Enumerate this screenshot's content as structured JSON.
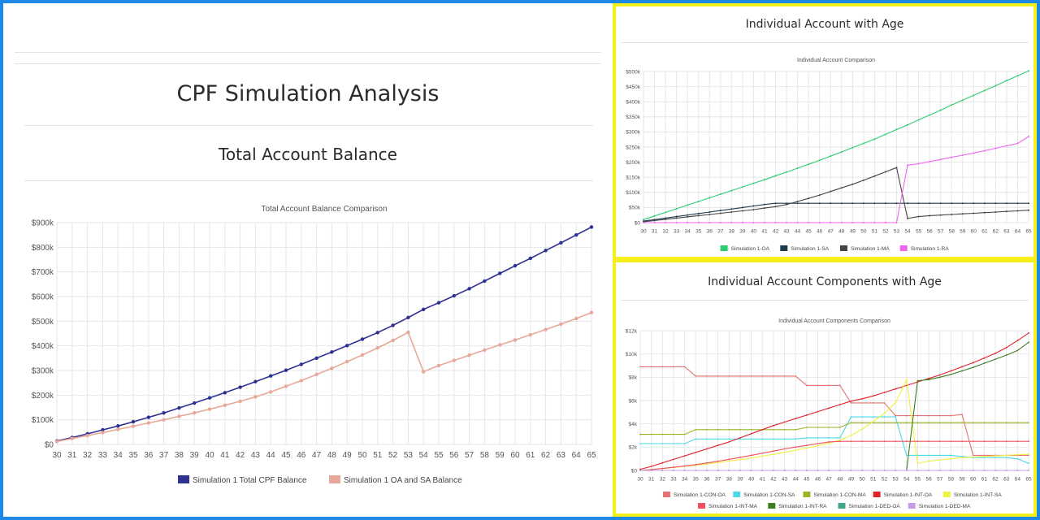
{
  "left": {
    "page_title": "CPF Simulation Analysis",
    "section_title": "Total Account Balance"
  },
  "right_top": {
    "section_title": "Individual Account with Age"
  },
  "right_bottom": {
    "section_title": "Individual Account Components with Age"
  },
  "chart_data": [
    {
      "id": "total",
      "type": "line",
      "title": "Total Account Balance Comparison",
      "xlabel": "",
      "ylabel": "",
      "x": [
        30,
        31,
        32,
        33,
        34,
        35,
        36,
        37,
        38,
        39,
        40,
        41,
        42,
        43,
        44,
        45,
        46,
        47,
        48,
        49,
        50,
        51,
        52,
        53,
        54,
        55,
        56,
        57,
        58,
        59,
        60,
        61,
        62,
        63,
        64,
        65
      ],
      "ylim": [
        0,
        900000
      ],
      "y_ticks": [
        "$0",
        "$100k",
        "$200k",
        "$300k",
        "$400k",
        "$500k",
        "$600k",
        "$700k",
        "$800k",
        "$900k"
      ],
      "grid": true,
      "legend_position": "bottom",
      "series": [
        {
          "name": "Simulation 1 Total CPF Balance",
          "color": "#2e3192",
          "values": [
            14000,
            28000,
            43000,
            59000,
            75000,
            92000,
            110000,
            128000,
            148000,
            168000,
            189000,
            210000,
            232000,
            255000,
            278000,
            301000,
            325000,
            350000,
            375000,
            401000,
            427000,
            454000,
            483000,
            515000,
            548000,
            575000,
            603000,
            632000,
            663000,
            694000,
            725000,
            755000,
            787000,
            818000,
            850000,
            882000
          ]
        },
        {
          "name": "Simulation 1 OA and SA Balance",
          "color": "#e8a898",
          "values": [
            12000,
            24000,
            36000,
            48000,
            61000,
            74000,
            87000,
            100000,
            114000,
            128000,
            143000,
            159000,
            175000,
            193000,
            213000,
            236000,
            259000,
            284000,
            309000,
            336000,
            363000,
            392000,
            422000,
            455000,
            295000,
            320000,
            341000,
            362000,
            383000,
            404000,
            424000,
            445000,
            466000,
            488000,
            511000,
            535000
          ]
        }
      ]
    },
    {
      "id": "individual",
      "type": "line",
      "title": "Individual Account Comparison",
      "x": [
        30,
        31,
        32,
        33,
        34,
        35,
        36,
        37,
        38,
        39,
        40,
        41,
        42,
        43,
        44,
        45,
        46,
        47,
        48,
        49,
        50,
        51,
        52,
        53,
        54,
        55,
        56,
        57,
        58,
        59,
        60,
        61,
        62,
        63,
        64,
        65
      ],
      "ylim": [
        0,
        500000
      ],
      "y_ticks": [
        "$0",
        "$50k",
        "$100k",
        "$150k",
        "$200k",
        "$250k",
        "$300k",
        "$350k",
        "$400k",
        "$450k",
        "$500k"
      ],
      "grid": true,
      "legend_position": "bottom",
      "series": [
        {
          "name": "Simulation 1-OA",
          "color": "#2ecc71",
          "values": [
            10000,
            22000,
            34000,
            46000,
            58000,
            70000,
            82000,
            94000,
            106000,
            118000,
            130000,
            142000,
            155000,
            167000,
            180000,
            193000,
            206000,
            220000,
            234000,
            248000,
            262000,
            276000,
            292000,
            308000,
            323000,
            340000,
            356000,
            372000,
            389000,
            405000,
            421000,
            437000,
            453000,
            470000,
            486000,
            502000
          ]
        },
        {
          "name": "Simulation 1-SA",
          "color": "#1f3a4d",
          "values": [
            5000,
            10000,
            15000,
            20000,
            25000,
            30000,
            35000,
            40000,
            45000,
            50000,
            55000,
            60000,
            64000,
            64000,
            64000,
            64000,
            64000,
            64000,
            64000,
            64000,
            64000,
            64000,
            64000,
            64000,
            64000,
            64000,
            64000,
            64000,
            64000,
            64000,
            64000,
            64000,
            64000,
            64000,
            64000,
            64000
          ]
        },
        {
          "name": "Simulation 1-MA",
          "color": "#444444",
          "values": [
            3000,
            7000,
            11000,
            15000,
            19000,
            23000,
            27000,
            31000,
            35000,
            39000,
            43000,
            48000,
            53000,
            60000,
            70000,
            80000,
            91000,
            103000,
            115000,
            127000,
            140000,
            154000,
            168000,
            182000,
            14000,
            20000,
            23000,
            25000,
            27000,
            29000,
            31000,
            33000,
            35000,
            37000,
            39000,
            41000
          ]
        },
        {
          "name": "Simulation 1-RA",
          "color": "#ee66ee",
          "values": [
            0,
            0,
            0,
            0,
            0,
            0,
            0,
            0,
            0,
            0,
            0,
            0,
            0,
            0,
            0,
            0,
            0,
            0,
            0,
            0,
            0,
            0,
            0,
            0,
            190000,
            195000,
            202000,
            209000,
            216000,
            223000,
            230000,
            238000,
            246000,
            254000,
            262000,
            285000
          ]
        }
      ]
    },
    {
      "id": "components",
      "type": "line",
      "title": "Individual Account Components Comparison",
      "x": [
        30,
        31,
        32,
        33,
        34,
        35,
        36,
        37,
        38,
        39,
        40,
        41,
        42,
        43,
        44,
        45,
        46,
        47,
        48,
        49,
        50,
        51,
        52,
        53,
        54,
        55,
        56,
        57,
        58,
        59,
        60,
        61,
        62,
        63,
        64,
        65
      ],
      "ylim": [
        0,
        12000
      ],
      "y_ticks": [
        "$0",
        "$2k",
        "$4k",
        "$6k",
        "$8k",
        "$10k",
        "$12k"
      ],
      "grid": true,
      "legend_position": "bottom",
      "series": [
        {
          "name": "Simulation 1-CON-OA",
          "color": "#e57373",
          "values": [
            8900,
            8900,
            8900,
            8900,
            8900,
            8100,
            8100,
            8100,
            8100,
            8100,
            8100,
            8100,
            8100,
            8100,
            8100,
            7300,
            7300,
            7300,
            7300,
            5800,
            5800,
            5800,
            5800,
            4700,
            4700,
            4700,
            4700,
            4700,
            4700,
            4800,
            1300,
            1300,
            1300,
            1300,
            1300,
            1300
          ]
        },
        {
          "name": "Simulation 1-CON-SA",
          "color": "#4dd9e8",
          "values": [
            2300,
            2300,
            2300,
            2300,
            2300,
            2700,
            2700,
            2700,
            2700,
            2700,
            2700,
            2700,
            2700,
            2700,
            2700,
            2800,
            2800,
            2800,
            2800,
            4600,
            4600,
            4600,
            4600,
            4600,
            1300,
            1300,
            1300,
            1300,
            1300,
            1200,
            1100,
            1100,
            1100,
            1100,
            1000,
            600
          ]
        },
        {
          "name": "Simulation 1-CON-MA",
          "color": "#9ab523",
          "values": [
            3100,
            3100,
            3100,
            3100,
            3100,
            3500,
            3500,
            3500,
            3500,
            3500,
            3500,
            3500,
            3500,
            3500,
            3500,
            3700,
            3700,
            3700,
            3700,
            4100,
            4100,
            4100,
            4100,
            4100,
            4100,
            4100,
            4100,
            4100,
            4100,
            4100,
            4100,
            4100,
            4100,
            4100,
            4100,
            4100
          ]
        },
        {
          "name": "Simulation 1-INT-OA",
          "color": "#e0202a",
          "values": [
            100,
            350,
            650,
            950,
            1250,
            1550,
            1850,
            2150,
            2450,
            2800,
            3150,
            3500,
            3850,
            4150,
            4450,
            4750,
            5050,
            5350,
            5650,
            5950,
            6150,
            6400,
            6700,
            7000,
            7300,
            7600,
            7900,
            8200,
            8550,
            8900,
            9250,
            9650,
            10050,
            10550,
            11150,
            11800
          ]
        },
        {
          "name": "Simulation 1-INT-SA",
          "color": "#f0f040",
          "values": [
            0,
            80,
            160,
            250,
            350,
            450,
            560,
            680,
            800,
            930,
            1070,
            1220,
            1380,
            1550,
            1730,
            1920,
            2120,
            2340,
            2600,
            3000,
            3550,
            4200,
            4900,
            5800,
            7800,
            600,
            800,
            900,
            1000,
            1100,
            1150,
            1200,
            1250,
            1300,
            1350,
            1400
          ]
        },
        {
          "name": "Simulation 1-INT-MA",
          "color": "#f05060",
          "values": [
            0,
            80,
            170,
            270,
            380,
            500,
            640,
            790,
            950,
            1120,
            1300,
            1480,
            1660,
            1850,
            2000,
            2150,
            2300,
            2450,
            2500,
            2500,
            2500,
            2500,
            2500,
            2500,
            2500,
            2500,
            2500,
            2500,
            2500,
            2500,
            2500,
            2500,
            2500,
            2500,
            2500,
            2500
          ]
        },
        {
          "name": "Simulation 1-INT-RA",
          "color": "#3c7d22",
          "values": [
            0,
            0,
            0,
            0,
            0,
            0,
            0,
            0,
            0,
            0,
            0,
            0,
            0,
            0,
            0,
            0,
            0,
            0,
            0,
            0,
            0,
            0,
            0,
            0,
            0,
            7700,
            7800,
            8000,
            8250,
            8550,
            8850,
            9200,
            9550,
            9900,
            10300,
            11000
          ]
        },
        {
          "name": "Simulation 1-DED-OA",
          "color": "#41a68c",
          "values": [
            0,
            0,
            0,
            0,
            0,
            0,
            0,
            0,
            0,
            0,
            0,
            0,
            0,
            0,
            0,
            0,
            0,
            0,
            0,
            0,
            0,
            0,
            0,
            0,
            0,
            0,
            0,
            0,
            0,
            0,
            0,
            0,
            0,
            0,
            0,
            0
          ]
        },
        {
          "name": "Simulation 1-DED-MA",
          "color": "#c89be6",
          "values": [
            0,
            0,
            0,
            0,
            0,
            0,
            0,
            0,
            0,
            0,
            0,
            0,
            0,
            0,
            0,
            0,
            0,
            0,
            0,
            0,
            0,
            0,
            0,
            0,
            0,
            0,
            0,
            0,
            0,
            0,
            0,
            0,
            0,
            0,
            0,
            0
          ]
        }
      ]
    }
  ]
}
